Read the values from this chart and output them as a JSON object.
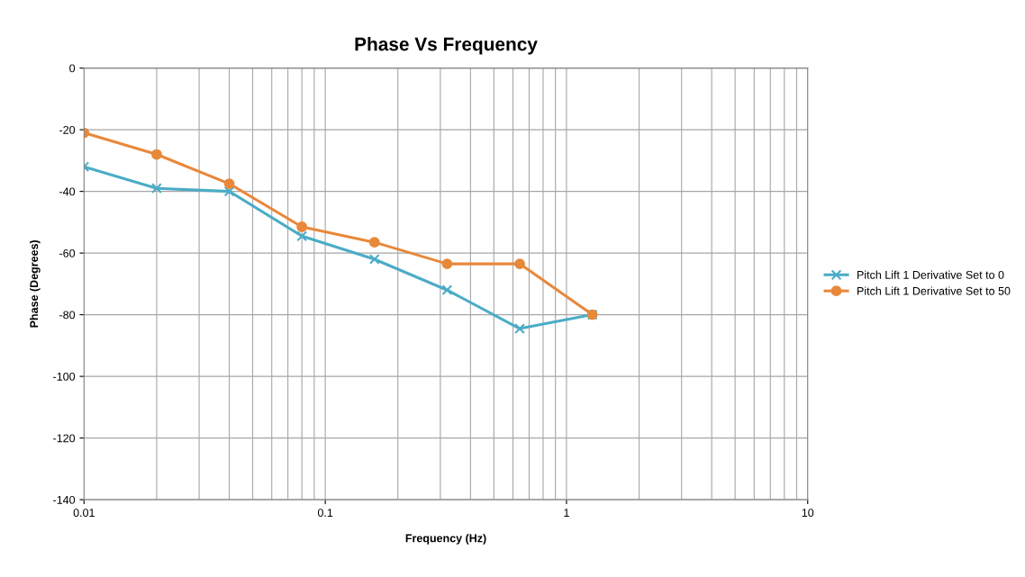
{
  "chart_data": {
    "type": "line",
    "title": "Phase Vs Frequency",
    "xlabel": "Frequency (Hz)",
    "ylabel": "Phase (Degrees)",
    "log": "x",
    "grid": true,
    "legend": "right",
    "x": [
      0.01,
      0.02,
      0.04,
      0.08,
      0.16,
      0.32,
      0.64,
      1.28
    ],
    "xlim": [
      0.01,
      10
    ],
    "xticks": [
      0.01,
      0.1,
      1,
      10
    ],
    "ylim": [
      -140,
      0
    ],
    "yticks": [
      -140,
      -120,
      -100,
      -80,
      -60,
      -40,
      -20,
      0
    ],
    "series": [
      {
        "name": "Pitch Lift 1 Derivative Set to 0",
        "color": "#4bacc6",
        "marker": "cross",
        "values": [
          -32,
          -39,
          -40,
          -54.5,
          -62,
          -72,
          -84.5,
          -80
        ]
      },
      {
        "name": "Pitch Lift 1 Derivative Set to 50",
        "color": "#e8883a",
        "marker": "circle",
        "values": [
          -21,
          -28,
          -37.5,
          -51.5,
          -56.5,
          -63.5,
          -63.5,
          -80
        ]
      }
    ]
  }
}
